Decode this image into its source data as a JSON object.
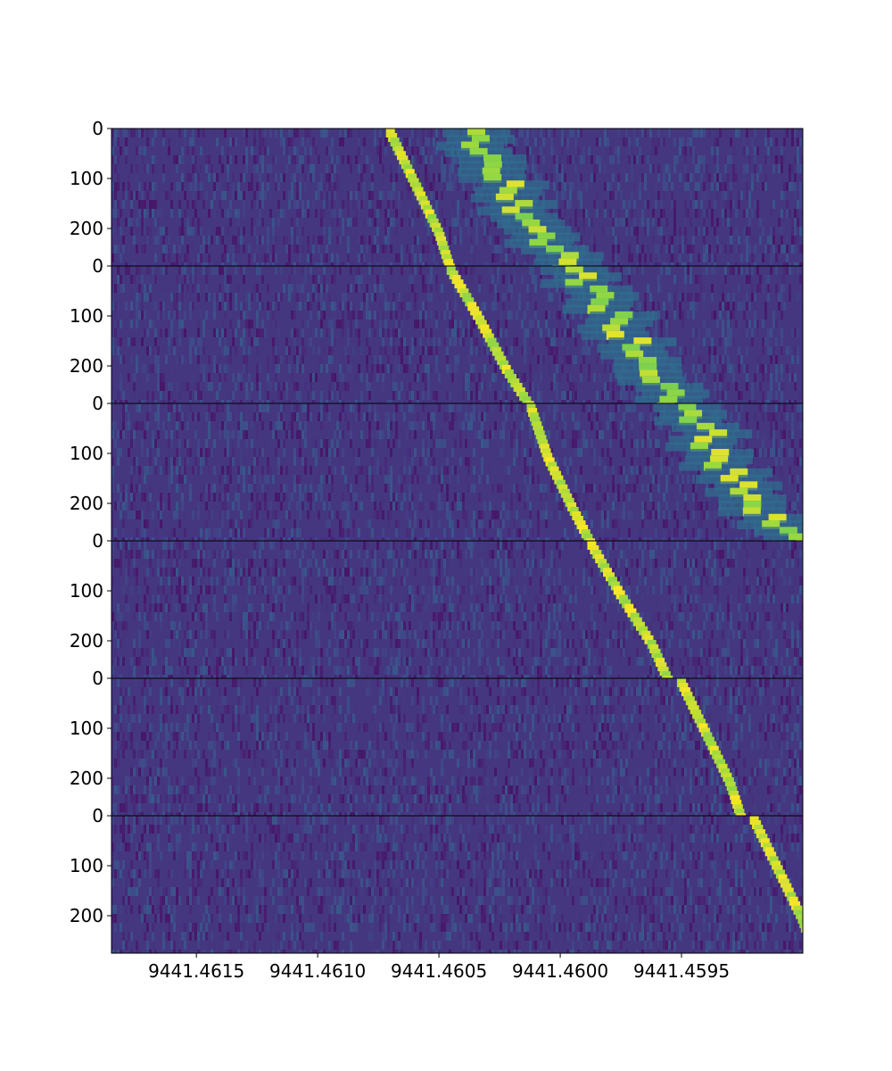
{
  "chart_data": {
    "type": "heatmap",
    "title": "",
    "xlabel": "",
    "ylabel": "",
    "colormap": "viridis",
    "xlim": [
      9441.46185,
      9441.459
    ],
    "x_inverted": true,
    "x_ticks": [
      "9441.4615",
      "9441.4610",
      "9441.4605",
      "9441.4600",
      "9441.4595"
    ],
    "x_tick_values": [
      9441.4615,
      9441.461,
      9441.4605,
      9441.46,
      9441.4595
    ],
    "panels": [
      {
        "y_range": [
          0,
          275
        ],
        "y_ticks": [
          "0",
          "100",
          "200"
        ],
        "primary_track": [
          [
            0,
            9441.4607
          ],
          [
            100,
            9441.4606
          ],
          [
            200,
            9441.4605
          ],
          [
            275,
            9441.46045
          ]
        ],
        "secondary_track": [
          [
            0,
            9441.4604
          ],
          [
            100,
            9441.46023
          ],
          [
            200,
            9441.4601
          ],
          [
            275,
            9441.45995
          ]
        ]
      },
      {
        "y_range": [
          0,
          275
        ],
        "y_ticks": [
          "0",
          "100",
          "200"
        ],
        "primary_track": [
          [
            0,
            9441.46045
          ],
          [
            100,
            9441.46033
          ],
          [
            200,
            9441.46022
          ],
          [
            275,
            9441.46012
          ]
        ],
        "secondary_track": [
          [
            0,
            9441.45995
          ],
          [
            100,
            9441.45977
          ],
          [
            200,
            9441.4596
          ],
          [
            275,
            9441.45955
          ]
        ]
      },
      {
        "y_range": [
          0,
          275
        ],
        "y_ticks": [
          "0",
          "100",
          "200"
        ],
        "primary_track": [
          [
            0,
            9441.46012
          ],
          [
            100,
            9441.46005
          ],
          [
            200,
            9441.45995
          ],
          [
            275,
            9441.45987
          ]
        ],
        "secondary_track": [
          [
            0,
            9441.45945
          ],
          [
            100,
            9441.45935
          ],
          [
            200,
            9441.4592
          ],
          [
            275,
            9441.459
          ]
        ]
      },
      {
        "y_range": [
          0,
          275
        ],
        "y_ticks": [
          "0",
          "100",
          "200"
        ],
        "primary_track": [
          [
            0,
            9441.45987
          ],
          [
            100,
            9441.45975
          ],
          [
            200,
            9441.45962
          ],
          [
            275,
            9441.45955
          ]
        ]
      },
      {
        "y_range": [
          0,
          275
        ],
        "y_ticks": [
          "0",
          "100",
          "200"
        ],
        "primary_track": [
          [
            0,
            9441.4595
          ],
          [
            100,
            9441.4594
          ],
          [
            200,
            9441.4593
          ],
          [
            275,
            9441.45925
          ]
        ]
      },
      {
        "y_range": [
          0,
          275
        ],
        "y_ticks": [
          "0",
          "100",
          "200"
        ],
        "primary_track": [
          [
            0,
            9441.4592
          ],
          [
            100,
            9441.4591
          ],
          [
            200,
            9441.459
          ],
          [
            275,
            9441.45895
          ]
        ]
      }
    ]
  }
}
